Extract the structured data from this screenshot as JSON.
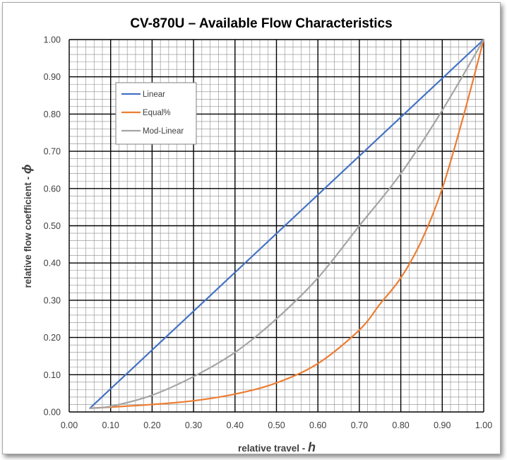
{
  "chart_data": {
    "type": "line",
    "title": "CV-870U – Available Flow Characteristics",
    "xlabel": "relative travel - ",
    "xlabel_symbol": "h",
    "ylabel": "relative flow coefficient - ",
    "ylabel_symbol": "ϕ",
    "xlim": [
      0,
      1
    ],
    "ylim": [
      0,
      1
    ],
    "x_ticks": [
      "0.00",
      "0.10",
      "0.20",
      "0.30",
      "0.40",
      "0.50",
      "0.60",
      "0.70",
      "0.80",
      "0.90",
      "1.00"
    ],
    "y_ticks": [
      "0.00",
      "0.10",
      "0.20",
      "0.30",
      "0.40",
      "0.50",
      "0.60",
      "0.70",
      "0.80",
      "0.90",
      "1.00"
    ],
    "grid": {
      "major": 0.1,
      "minor": 0.02
    },
    "legend_position": "top-left",
    "series": [
      {
        "name": "Linear",
        "color": "#4472c4",
        "points": [
          [
            0.05,
            0.01
          ],
          [
            1.0,
            1.0
          ]
        ]
      },
      {
        "name": "Equal%",
        "color": "#ed7d31",
        "points": [
          [
            0.05,
            0.01
          ],
          [
            0.1,
            0.013
          ],
          [
            0.2,
            0.02
          ],
          [
            0.3,
            0.03
          ],
          [
            0.4,
            0.048
          ],
          [
            0.5,
            0.078
          ],
          [
            0.6,
            0.13
          ],
          [
            0.7,
            0.22
          ],
          [
            0.75,
            0.29
          ],
          [
            0.8,
            0.36
          ],
          [
            0.85,
            0.46
          ],
          [
            0.9,
            0.6
          ],
          [
            0.95,
            0.79
          ],
          [
            1.0,
            1.0
          ]
        ]
      },
      {
        "name": "Mod-Linear",
        "color": "#a5a5a5",
        "points": [
          [
            0.05,
            0.01
          ],
          [
            0.1,
            0.015
          ],
          [
            0.2,
            0.045
          ],
          [
            0.3,
            0.095
          ],
          [
            0.4,
            0.16
          ],
          [
            0.5,
            0.25
          ],
          [
            0.6,
            0.36
          ],
          [
            0.7,
            0.5
          ],
          [
            0.8,
            0.64
          ],
          [
            0.9,
            0.81
          ],
          [
            1.0,
            1.0
          ]
        ]
      }
    ]
  }
}
